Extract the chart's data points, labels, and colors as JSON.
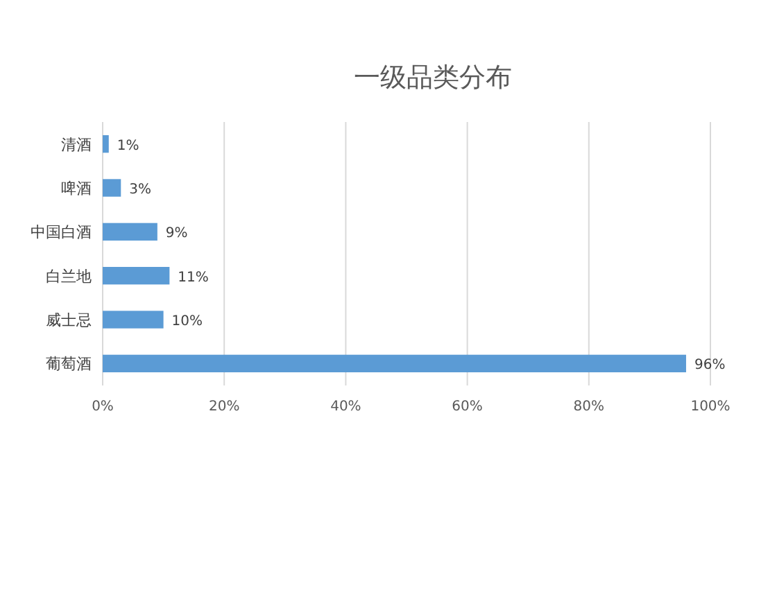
{
  "chart_data": {
    "type": "bar",
    "orientation": "horizontal",
    "title": "一级品类分布",
    "categories": [
      "清酒",
      "啤酒",
      "中国白酒",
      "白兰地",
      "威士忌",
      "葡萄酒"
    ],
    "values": [
      1,
      3,
      9,
      11,
      10,
      96
    ],
    "value_labels": [
      "1%",
      "3%",
      "9%",
      "11%",
      "10%",
      "96%"
    ],
    "color": "#5b9bd5",
    "xlim": [
      0,
      100
    ],
    "xticks": [
      {
        "value": 0,
        "label": "0%"
      },
      {
        "value": 20,
        "label": "20%"
      },
      {
        "value": 40,
        "label": "40%"
      },
      {
        "value": 60,
        "label": "60%"
      },
      {
        "value": 80,
        "label": "80%"
      },
      {
        "value": 100,
        "label": "100%"
      }
    ],
    "grid": "x"
  }
}
